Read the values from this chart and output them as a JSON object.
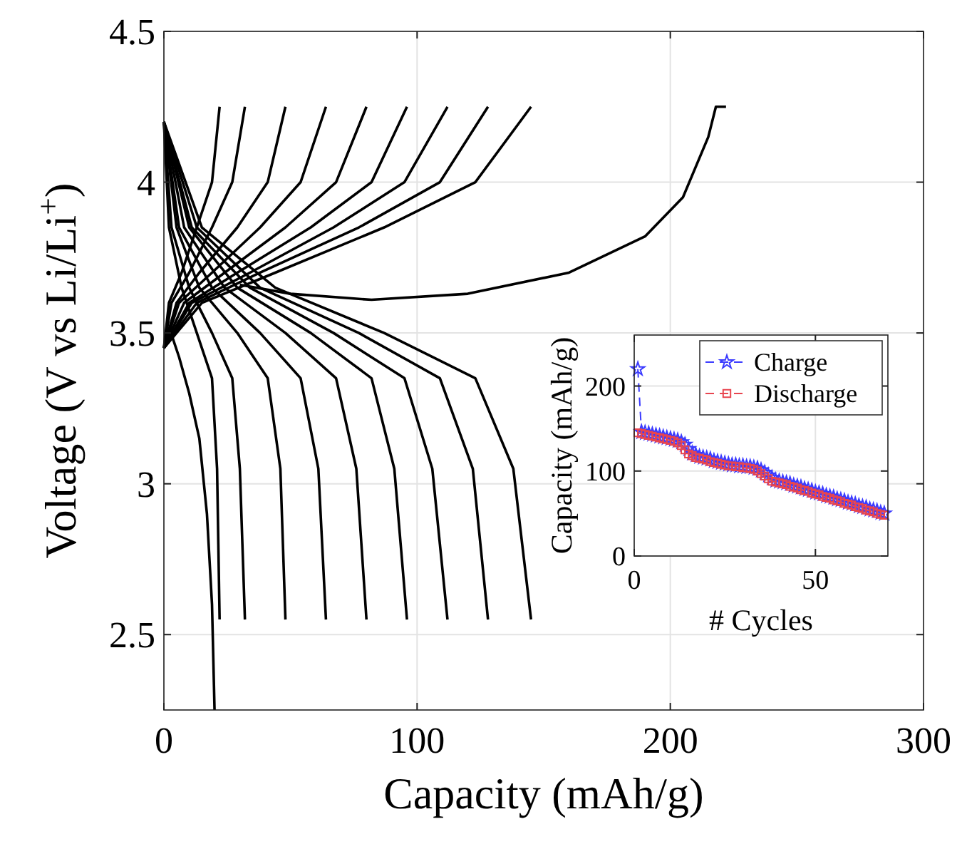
{
  "chart_data": [
    {
      "type": "line",
      "xlabel": "Capacity (mAh/g)",
      "ylabel": "Voltage (V vs Li/Li$^{+}$)",
      "xlim": [
        0,
        300
      ],
      "ylim": [
        2.25,
        4.5
      ],
      "xticks": [
        0,
        100,
        200,
        300
      ],
      "yticks": [
        2.5,
        3,
        3.5,
        4,
        4.5
      ],
      "grid": true,
      "legend": false,
      "series": [
        {
          "color": "#000000",
          "x": [
            20,
            19,
            17,
            14,
            10,
            6,
            2
          ],
          "values": [
            2.25,
            2.6,
            2.9,
            3.15,
            3.3,
            3.42,
            3.52
          ]
        },
        {
          "color": "#000000",
          "x": [
            30,
            50,
            82,
            120,
            160,
            190,
            205,
            215,
            218,
            222
          ],
          "values": [
            3.66,
            3.63,
            3.61,
            3.63,
            3.7,
            3.82,
            3.95,
            4.15,
            4.25,
            4.25
          ]
        },
        {
          "color": "#000000",
          "x": [
            0,
            15,
            44,
            87,
            123,
            145
          ],
          "values": [
            3.45,
            3.6,
            3.7,
            3.85,
            4.0,
            4.25
          ]
        },
        {
          "color": "#000000",
          "x": [
            0,
            15,
            44,
            87,
            123,
            138,
            145
          ],
          "values": [
            4.2,
            3.85,
            3.65,
            3.5,
            3.35,
            3.05,
            2.55
          ]
        },
        {
          "color": "#000000",
          "x": [
            0,
            13,
            38,
            77,
            109,
            128
          ],
          "values": [
            3.45,
            3.6,
            3.7,
            3.85,
            4.0,
            4.25
          ]
        },
        {
          "color": "#000000",
          "x": [
            0,
            13,
            38,
            77,
            109,
            122,
            128
          ],
          "values": [
            4.2,
            3.85,
            3.65,
            3.5,
            3.35,
            3.05,
            2.55
          ]
        },
        {
          "color": "#000000",
          "x": [
            0,
            11,
            34,
            67,
            95,
            112
          ],
          "values": [
            3.45,
            3.6,
            3.7,
            3.85,
            4.0,
            4.25
          ]
        },
        {
          "color": "#000000",
          "x": [
            0,
            11,
            34,
            67,
            95,
            106,
            112
          ],
          "values": [
            4.2,
            3.85,
            3.65,
            3.5,
            3.35,
            3.05,
            2.55
          ]
        },
        {
          "color": "#000000",
          "x": [
            0,
            10,
            29,
            58,
            82,
            96
          ],
          "values": [
            3.45,
            3.6,
            3.7,
            3.85,
            4.0,
            4.25
          ]
        },
        {
          "color": "#000000",
          "x": [
            0,
            10,
            29,
            58,
            82,
            91,
            96
          ],
          "values": [
            4.2,
            3.85,
            3.65,
            3.5,
            3.35,
            3.05,
            2.55
          ]
        },
        {
          "color": "#000000",
          "x": [
            0,
            8,
            24,
            48,
            68,
            80
          ],
          "values": [
            3.45,
            3.6,
            3.7,
            3.85,
            4.0,
            4.25
          ]
        },
        {
          "color": "#000000",
          "x": [
            0,
            8,
            24,
            48,
            68,
            76,
            80
          ],
          "values": [
            4.2,
            3.85,
            3.65,
            3.5,
            3.35,
            3.05,
            2.55
          ]
        },
        {
          "color": "#000000",
          "x": [
            0,
            6,
            19,
            38,
            54,
            64
          ],
          "values": [
            3.45,
            3.6,
            3.7,
            3.85,
            4.0,
            4.25
          ]
        },
        {
          "color": "#000000",
          "x": [
            0,
            6,
            19,
            38,
            54,
            61,
            64
          ],
          "values": [
            4.2,
            3.85,
            3.65,
            3.5,
            3.35,
            3.05,
            2.55
          ]
        },
        {
          "color": "#000000",
          "x": [
            0,
            5,
            14,
            29,
            41,
            48
          ],
          "values": [
            3.45,
            3.6,
            3.7,
            3.85,
            4.0,
            4.25
          ]
        },
        {
          "color": "#000000",
          "x": [
            0,
            5,
            14,
            29,
            41,
            46,
            48
          ],
          "values": [
            4.2,
            3.85,
            3.65,
            3.5,
            3.35,
            3.05,
            2.55
          ]
        },
        {
          "color": "#000000",
          "x": [
            0,
            3,
            10,
            19,
            27,
            32
          ],
          "values": [
            3.45,
            3.6,
            3.7,
            3.85,
            4.0,
            4.25
          ]
        },
        {
          "color": "#000000",
          "x": [
            0,
            3,
            10,
            19,
            27,
            30,
            32
          ],
          "values": [
            4.2,
            3.85,
            3.65,
            3.5,
            3.35,
            3.05,
            2.55
          ]
        },
        {
          "color": "#000000",
          "x": [
            0,
            2,
            7,
            13,
            19,
            22
          ],
          "values": [
            3.45,
            3.6,
            3.7,
            3.85,
            4.0,
            4.25
          ]
        },
        {
          "color": "#000000",
          "x": [
            0,
            2,
            7,
            13,
            19,
            21,
            22
          ],
          "values": [
            4.2,
            3.85,
            3.65,
            3.5,
            3.35,
            3.05,
            2.55
          ]
        }
      ]
    },
    {
      "type": "line",
      "xlabel": "# Cycles",
      "ylabel": "Capacity (mAh/g)",
      "xlim": [
        0,
        70
      ],
      "ylim": [
        0,
        260
      ],
      "xticks": [
        0,
        50
      ],
      "yticks": [
        0,
        100,
        200
      ],
      "grid": true,
      "legend": "top right",
      "line_style": "dashed",
      "x": [
        1,
        2,
        3,
        4,
        5,
        6,
        7,
        8,
        9,
        10,
        11,
        12,
        13,
        14,
        15,
        16,
        17,
        18,
        19,
        20,
        21,
        22,
        23,
        24,
        25,
        26,
        27,
        28,
        29,
        30,
        31,
        32,
        33,
        34,
        35,
        36,
        37,
        38,
        39,
        40,
        41,
        42,
        43,
        44,
        45,
        46,
        47,
        48,
        49,
        50,
        51,
        52,
        53,
        54,
        55,
        56,
        57,
        58,
        59,
        60,
        61,
        62,
        63,
        64,
        65,
        66,
        67,
        68,
        69
      ],
      "series": [
        {
          "name": "Charge",
          "color": "#3b3bff",
          "marker": "star",
          "values": [
            220,
            146,
            145,
            144,
            143,
            142,
            141,
            140,
            139,
            138,
            137,
            136,
            134,
            131,
            126,
            121,
            119,
            117,
            116,
            115,
            114,
            112,
            111,
            110,
            109,
            108,
            107,
            107,
            106,
            106,
            105,
            105,
            104,
            103,
            101,
            98,
            95,
            92,
            89,
            88,
            87,
            86,
            85,
            83,
            82,
            81,
            79,
            78,
            77,
            75,
            74,
            73,
            71,
            70,
            69,
            67,
            66,
            65,
            63,
            62,
            61,
            59,
            58,
            57,
            55,
            54,
            53,
            51,
            50
          ]
        },
        {
          "name": "Discharge",
          "color": "#e8454f",
          "marker": "square",
          "values": [
            145,
            144,
            143,
            142,
            141,
            140,
            139,
            138,
            137,
            136,
            135,
            133,
            130,
            125,
            120,
            118,
            116,
            115,
            114,
            113,
            111,
            110,
            109,
            108,
            107,
            106,
            106,
            105,
            105,
            104,
            104,
            103,
            102,
            100,
            97,
            94,
            91,
            88,
            87,
            86,
            85,
            84,
            82,
            81,
            80,
            78,
            77,
            76,
            74,
            73,
            72,
            70,
            69,
            68,
            66,
            65,
            64,
            62,
            61,
            60,
            58,
            57,
            56,
            54,
            53,
            52,
            50,
            49,
            48
          ]
        }
      ]
    }
  ]
}
